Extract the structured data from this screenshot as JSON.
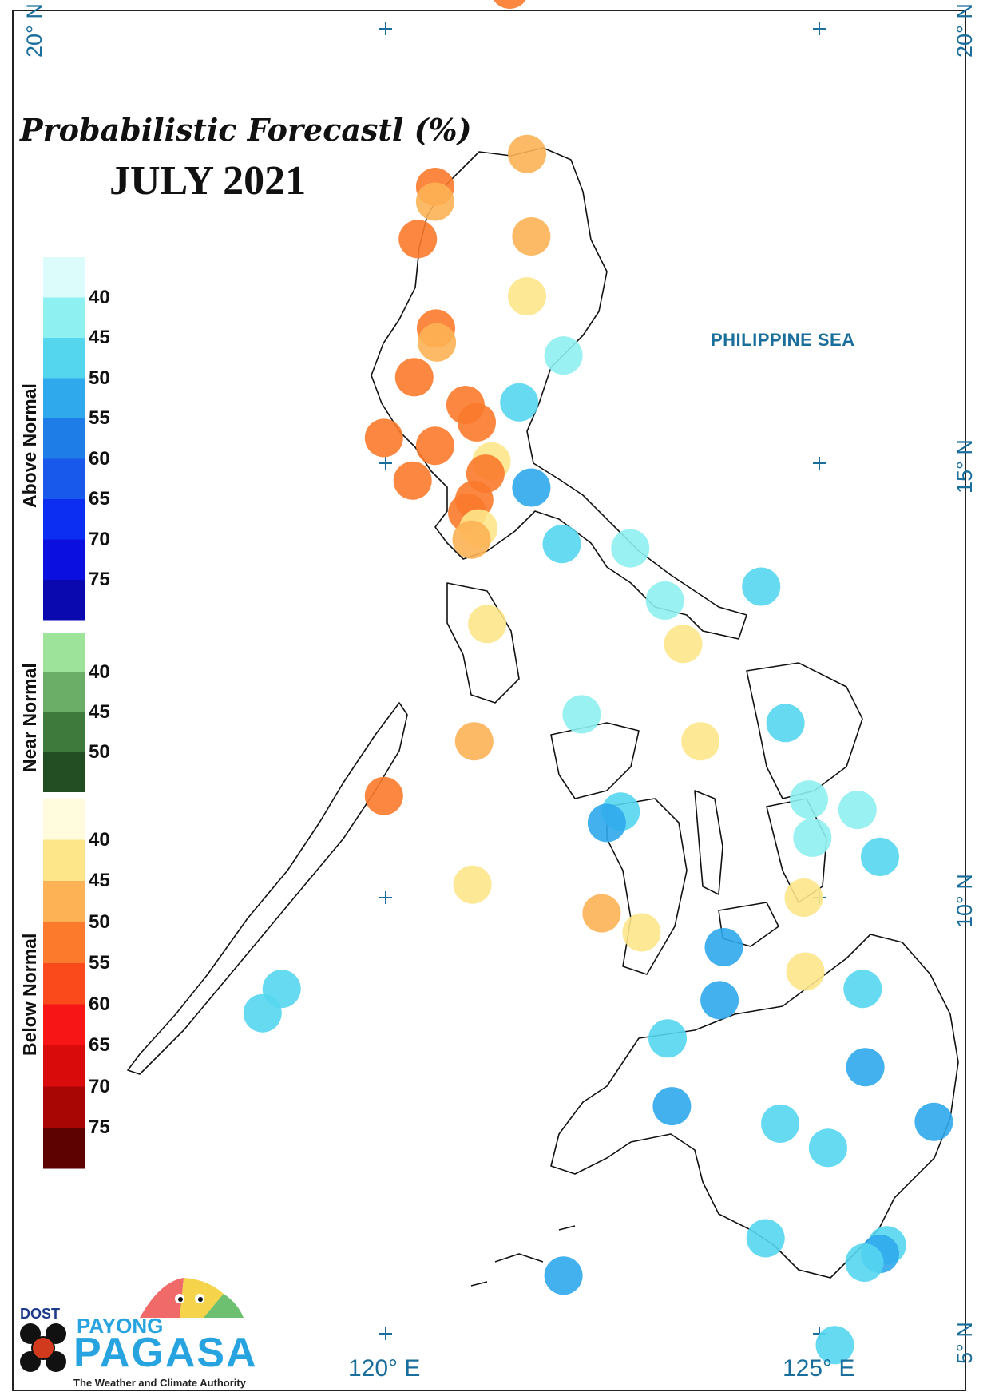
{
  "title": "Probabilistic Forecastl (%)",
  "subtitle": "JULY 2021",
  "sea_label": "PHILIPPINE SEA",
  "latitude_labels": [
    "20° N",
    "20° N",
    "15° N",
    "10° N",
    "5° N"
  ],
  "longitude_labels": [
    "120° E",
    "125° E"
  ],
  "legend": {
    "above_normal": {
      "label": "Above Normal",
      "ticks": [
        "40",
        "45",
        "50",
        "55",
        "60",
        "65",
        "70",
        "75"
      ],
      "colors": [
        "#dcfbfb",
        "#8ef0f0",
        "#55d6ef",
        "#2fa8ec",
        "#1f7de8",
        "#1858ea",
        "#0b2ef2",
        "#0b10e0",
        "#0a09b0"
      ]
    },
    "near_normal": {
      "label": "Near Normal",
      "ticks": [
        "40",
        "45",
        "50"
      ],
      "colors": [
        "#9de39a",
        "#6aae67",
        "#3f7a3d",
        "#234d22"
      ]
    },
    "below_normal": {
      "label": "Below Normal",
      "ticks": [
        "40",
        "45",
        "50",
        "55",
        "60",
        "65",
        "70",
        "75"
      ],
      "colors": [
        "#fffbdc",
        "#fde68a",
        "#fdb355",
        "#fb7a2c",
        "#fa4a1c",
        "#f81515",
        "#d90b0b",
        "#a80505",
        "#5e0101"
      ]
    }
  },
  "stations": [
    {
      "lon": 121.43,
      "lat": 20.45,
      "category": "below",
      "prob": 50
    },
    {
      "lon": 121.63,
      "lat": 18.56,
      "category": "below",
      "prob": 45
    },
    {
      "lon": 120.57,
      "lat": 18.18,
      "category": "below",
      "prob": 50
    },
    {
      "lon": 120.57,
      "lat": 18.01,
      "category": "below",
      "prob": 45
    },
    {
      "lon": 121.68,
      "lat": 17.61,
      "category": "below",
      "prob": 45
    },
    {
      "lon": 120.37,
      "lat": 17.58,
      "category": "below",
      "prob": 50
    },
    {
      "lon": 121.63,
      "lat": 16.92,
      "category": "below",
      "prob": 40
    },
    {
      "lon": 120.58,
      "lat": 16.55,
      "category": "below",
      "prob": 50
    },
    {
      "lon": 120.59,
      "lat": 16.39,
      "category": "below",
      "prob": 45
    },
    {
      "lon": 122.05,
      "lat": 16.24,
      "category": "above",
      "prob": 40
    },
    {
      "lon": 120.33,
      "lat": 15.99,
      "category": "below",
      "prob": 50
    },
    {
      "lon": 121.54,
      "lat": 15.7,
      "category": "above",
      "prob": 45
    },
    {
      "lon": 120.92,
      "lat": 15.67,
      "category": "below",
      "prob": 50
    },
    {
      "lon": 121.05,
      "lat": 15.47,
      "category": "below",
      "prob": 50
    },
    {
      "lon": 119.98,
      "lat": 15.29,
      "category": "below",
      "prob": 50
    },
    {
      "lon": 120.57,
      "lat": 15.2,
      "category": "below",
      "prob": 50
    },
    {
      "lon": 121.22,
      "lat": 15.02,
      "category": "below",
      "prob": 40
    },
    {
      "lon": 121.15,
      "lat": 14.88,
      "category": "below",
      "prob": 50
    },
    {
      "lon": 120.31,
      "lat": 14.8,
      "category": "below",
      "prob": 50
    },
    {
      "lon": 121.68,
      "lat": 14.72,
      "category": "above",
      "prob": 50
    },
    {
      "lon": 121.02,
      "lat": 14.58,
      "category": "below",
      "prob": 50
    },
    {
      "lon": 120.94,
      "lat": 14.43,
      "category": "below",
      "prob": 50
    },
    {
      "lon": 121.07,
      "lat": 14.25,
      "category": "below",
      "prob": 40
    },
    {
      "lon": 120.99,
      "lat": 14.12,
      "category": "below",
      "prob": 45
    },
    {
      "lon": 122.03,
      "lat": 14.07,
      "category": "above",
      "prob": 45
    },
    {
      "lon": 122.82,
      "lat": 14.02,
      "category": "above",
      "prob": 40
    },
    {
      "lon": 124.33,
      "lat": 13.58,
      "category": "above",
      "prob": 45
    },
    {
      "lon": 123.22,
      "lat": 13.42,
      "category": "above",
      "prob": 40
    },
    {
      "lon": 121.17,
      "lat": 13.15,
      "category": "below",
      "prob": 40
    },
    {
      "lon": 123.43,
      "lat": 12.92,
      "category": "below",
      "prob": 40
    },
    {
      "lon": 122.26,
      "lat": 12.11,
      "category": "above",
      "prob": 40
    },
    {
      "lon": 124.61,
      "lat": 12.01,
      "category": "above",
      "prob": 45
    },
    {
      "lon": 121.02,
      "lat": 11.8,
      "category": "below",
      "prob": 45
    },
    {
      "lon": 123.63,
      "lat": 11.8,
      "category": "below",
      "prob": 40
    },
    {
      "lon": 119.98,
      "lat": 11.17,
      "category": "below",
      "prob": 50
    },
    {
      "lon": 124.88,
      "lat": 11.13,
      "category": "above",
      "prob": 40
    },
    {
      "lon": 125.44,
      "lat": 11.01,
      "category": "above",
      "prob": 40
    },
    {
      "lon": 122.71,
      "lat": 10.99,
      "category": "above",
      "prob": 45
    },
    {
      "lon": 122.55,
      "lat": 10.86,
      "category": "above",
      "prob": 50
    },
    {
      "lon": 124.92,
      "lat": 10.69,
      "category": "above",
      "prob": 40
    },
    {
      "lon": 125.7,
      "lat": 10.47,
      "category": "above",
      "prob": 45
    },
    {
      "lon": 121.0,
      "lat": 10.15,
      "category": "below",
      "prob": 40
    },
    {
      "lon": 124.82,
      "lat": 10.0,
      "category": "below",
      "prob": 40
    },
    {
      "lon": 122.49,
      "lat": 9.82,
      "category": "below",
      "prob": 45
    },
    {
      "lon": 122.95,
      "lat": 9.6,
      "category": "below",
      "prob": 40
    },
    {
      "lon": 123.9,
      "lat": 9.43,
      "category": "above",
      "prob": 50
    },
    {
      "lon": 124.84,
      "lat": 9.15,
      "category": "below",
      "prob": 40
    },
    {
      "lon": 125.5,
      "lat": 8.95,
      "category": "above",
      "prob": 45
    },
    {
      "lon": 118.8,
      "lat": 8.95,
      "category": "above",
      "prob": 45
    },
    {
      "lon": 123.85,
      "lat": 8.82,
      "category": "above",
      "prob": 50
    },
    {
      "lon": 118.58,
      "lat": 8.67,
      "category": "above",
      "prob": 45
    },
    {
      "lon": 123.25,
      "lat": 8.38,
      "category": "above",
      "prob": 45
    },
    {
      "lon": 125.53,
      "lat": 8.05,
      "category": "above",
      "prob": 50
    },
    {
      "lon": 123.3,
      "lat": 7.6,
      "category": "above",
      "prob": 50
    },
    {
      "lon": 124.55,
      "lat": 7.4,
      "category": "above",
      "prob": 45
    },
    {
      "lon": 126.32,
      "lat": 7.42,
      "category": "above",
      "prob": 50
    },
    {
      "lon": 125.1,
      "lat": 7.12,
      "category": "above",
      "prob": 45
    },
    {
      "lon": 124.38,
      "lat": 6.08,
      "category": "above",
      "prob": 45
    },
    {
      "lon": 125.78,
      "lat": 6.0,
      "category": "above",
      "prob": 45
    },
    {
      "lon": 125.7,
      "lat": 5.9,
      "category": "above",
      "prob": 50
    },
    {
      "lon": 125.52,
      "lat": 5.8,
      "category": "above",
      "prob": 45
    },
    {
      "lon": 122.05,
      "lat": 5.65,
      "category": "above",
      "prob": 50
    },
    {
      "lon": 125.18,
      "lat": 4.85,
      "category": "above",
      "prob": 45
    }
  ],
  "logo": {
    "org": "DOST",
    "brand_top": "PAYONG",
    "brand_main": "PAGASA",
    "tagline": "The Weather and Climate Authority"
  }
}
